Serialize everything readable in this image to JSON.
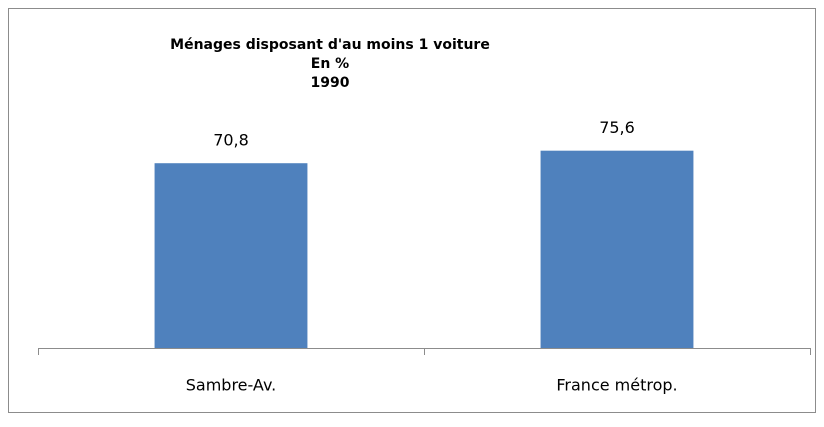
{
  "chart_data": {
    "type": "bar",
    "title": [
      "Ménages disposant d'au moins 1 voiture",
      "En %",
      "1990"
    ],
    "categories": [
      "Sambre-Av.",
      "France métrop."
    ],
    "values": [
      70.8,
      75.6
    ],
    "value_labels": [
      "70,8",
      "75,6"
    ],
    "color": "#4f81bd",
    "ylim": [
      0,
      100
    ]
  }
}
